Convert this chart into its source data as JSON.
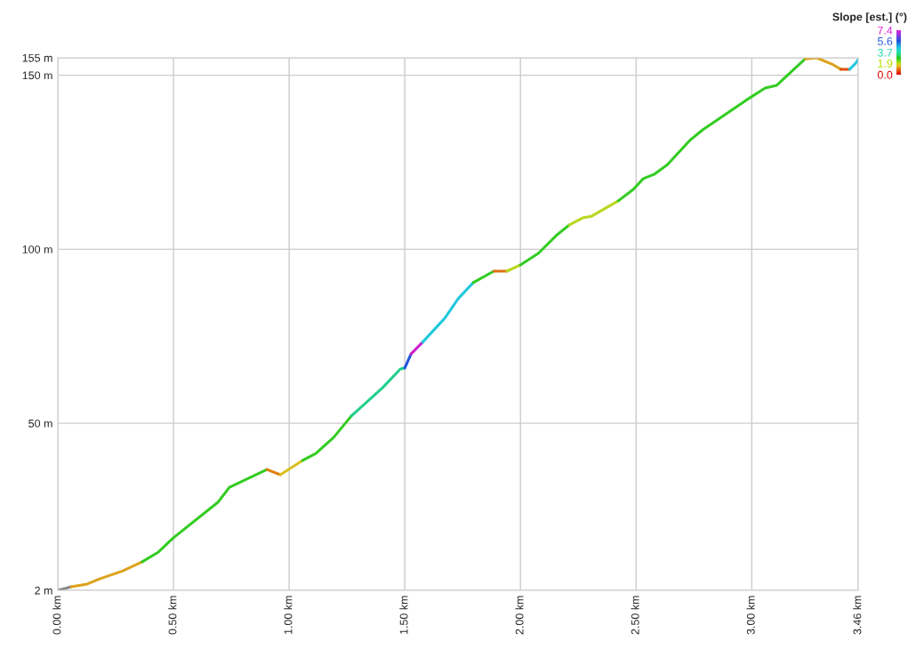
{
  "chart_data": {
    "type": "line",
    "clabel": "Slope [est.] (°)",
    "clim": [
      0,
      7.4
    ],
    "cticks": [
      {
        "value": 7.4,
        "label": "7.4"
      },
      {
        "value": 5.6,
        "label": "5.6"
      },
      {
        "value": 3.7,
        "label": "3.7"
      },
      {
        "value": 1.9,
        "label": "1.9"
      },
      {
        "value": 0,
        "label": "0.0"
      }
    ],
    "xlim": [
      0,
      3.46
    ],
    "xticks": [
      {
        "value": 0,
        "label": "0.00 km"
      },
      {
        "value": 0.5,
        "label": "0.50 km"
      },
      {
        "value": 1,
        "label": "1.00 km"
      },
      {
        "value": 1.5,
        "label": "1.50 km"
      },
      {
        "value": 2,
        "label": "2.00 km"
      },
      {
        "value": 2.5,
        "label": "2.50 km"
      },
      {
        "value": 3,
        "label": "3.00 km"
      },
      {
        "value": 3.46,
        "label": "3.46 km"
      }
    ],
    "ylim": [
      2,
      155
    ],
    "yticks": [
      {
        "value": 2,
        "label": "2 m"
      },
      {
        "value": 50,
        "label": "50 m"
      },
      {
        "value": 100,
        "label": "100 m"
      },
      {
        "value": 150,
        "label": "150 m"
      },
      {
        "value": 155,
        "label": "155 m"
      }
    ],
    "grid": true,
    "series": [
      {
        "color": "#888888",
        "x": [
          0,
          0.058
        ],
        "values": [
          2,
          3
        ]
      },
      {
        "color": "#dca21a",
        "x": [
          0.058,
          0.127,
          0.181,
          0.281,
          0.365
        ],
        "values": [
          3,
          3.8,
          5.3,
          7.6,
          10.2
        ]
      },
      {
        "color": "#33cc22",
        "x": [
          0.365,
          0.435,
          0.5,
          0.692,
          0.742,
          0.904
        ],
        "values": [
          10.2,
          13,
          17.1,
          27.3,
          31.6,
          36.7
        ]
      },
      {
        "color": "#e08010",
        "x": [
          0.904,
          0.962
        ],
        "values": [
          36.7,
          35.2
        ]
      },
      {
        "color": "#dcc020",
        "x": [
          0.962,
          1.058
        ],
        "values": [
          35.2,
          39.3
        ]
      },
      {
        "color": "#33cc22",
        "x": [
          1.058,
          1.115,
          1.192,
          1.269
        ],
        "values": [
          39.3,
          41.3,
          45.9,
          52.1
        ]
      },
      {
        "color": "#22d08a",
        "x": [
          1.269,
          1.404,
          1.481,
          1.5
        ],
        "values": [
          52.1,
          60.2,
          65.6,
          65.9
        ]
      },
      {
        "color": "#2255dd",
        "x": [
          1.5,
          1.527
        ],
        "values": [
          65.9,
          69.9
        ]
      },
      {
        "color": "#cc22cc",
        "x": [
          1.527,
          1.577
        ],
        "values": [
          69.9,
          73.3
        ]
      },
      {
        "color": "#22c8dd",
        "x": [
          1.577,
          1.673,
          1.731,
          1.796
        ],
        "values": [
          73.3,
          80.2,
          85.8,
          90.4
        ]
      },
      {
        "color": "#33cc22",
        "x": [
          1.796,
          1.885
        ],
        "values": [
          90.4,
          93.7
        ]
      },
      {
        "color": "#e07010",
        "x": [
          1.885,
          1.942
        ],
        "values": [
          93.7,
          93.7
        ]
      },
      {
        "color": "#b8d820",
        "x": [
          1.942,
          2.0
        ],
        "values": [
          93.7,
          95.5
        ]
      },
      {
        "color": "#33cc22",
        "x": [
          2.0,
          2.077,
          2.154,
          2.212
        ],
        "values": [
          95.5,
          98.8,
          103.9,
          107
        ]
      },
      {
        "color": "#b8d820",
        "x": [
          2.212,
          2.269,
          2.308,
          2.423
        ],
        "values": [
          107,
          109,
          109.5,
          113.9
        ]
      },
      {
        "color": "#33cc22",
        "x": [
          2.423,
          2.488,
          2.531,
          2.577,
          2.635,
          2.731,
          2.788,
          2.973,
          3.058,
          3.108,
          3.231
        ],
        "values": [
          113.9,
          117.2,
          120.3,
          121.5,
          124.3,
          131.2,
          134.3,
          142.7,
          146.3,
          147.1,
          154.7
        ]
      },
      {
        "color": "#dca21a",
        "x": [
          3.231,
          3.281,
          3.346,
          3.385
        ],
        "values": [
          154.7,
          155,
          153.2,
          151.7
        ]
      },
      {
        "color": "#e05010",
        "x": [
          3.385,
          3.423
        ],
        "values": [
          151.7,
          151.7
        ]
      },
      {
        "color": "#22c8dd",
        "x": [
          3.423,
          3.45,
          3.46
        ],
        "values": [
          151.7,
          153.5,
          154.5
        ]
      }
    ]
  }
}
